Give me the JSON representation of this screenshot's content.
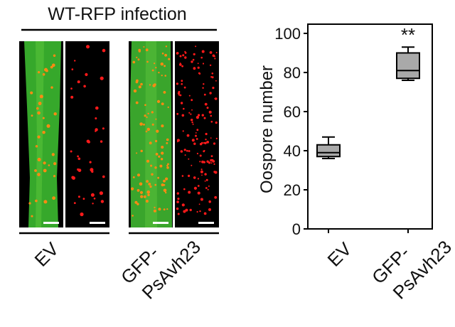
{
  "figure": {
    "panel_left": {
      "title": "WT-RFP infection",
      "groups": [
        {
          "label_lines": [
            "EV"
          ]
        },
        {
          "label_lines": [
            "GFP-",
            "PsAvh23"
          ]
        }
      ]
    },
    "colors": {
      "leaf_green": "#39a62a",
      "spot_orange": "#ff8a12",
      "spot_red": "#ff1a1a",
      "panel_bg": "#000000",
      "scale_bar": "#ffffff",
      "box_fill": "#a9a9a9"
    }
  },
  "chart_data": {
    "type": "box",
    "ylabel": "Oospore number",
    "ylim": [
      0,
      100
    ],
    "yticks": [
      0,
      20,
      40,
      60,
      80,
      100
    ],
    "categories": [
      {
        "label_lines": [
          "EV"
        ]
      },
      {
        "label_lines": [
          "GFP-",
          "PsAvh23"
        ]
      }
    ],
    "boxes": [
      {
        "min": 36,
        "q1": 37,
        "median": 39,
        "q3": 43,
        "max": 47,
        "annotation": ""
      },
      {
        "min": 76,
        "q1": 77,
        "median": 81,
        "q3": 90,
        "max": 93,
        "annotation": "**"
      }
    ]
  }
}
